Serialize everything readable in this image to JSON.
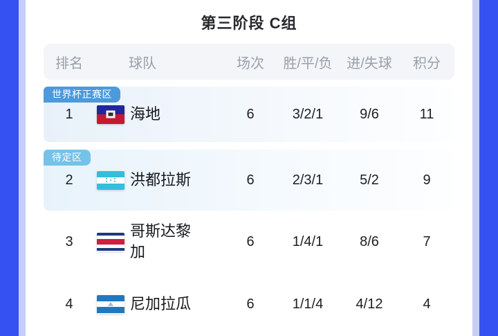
{
  "page": {
    "title": "第三阶段 C组"
  },
  "colors": {
    "frame_blue": "#3551F1",
    "frame_light_strip": "#C6CEF7",
    "header_bg": "#F3F5F8",
    "header_text": "#99A0AA",
    "highlight_row_blue": "#E8F1FA",
    "badge_world_cup_zone": "#4C99DB",
    "badge_pending_zone": "#74C2E8"
  },
  "table": {
    "headers": [
      "排名",
      "球队",
      "场次",
      "胜/平/负",
      "进/失球",
      "积分"
    ],
    "zones": {
      "world_cup": "世界杯正赛区",
      "pending": "待定区"
    },
    "rows": [
      {
        "rank": "1",
        "team": "海地",
        "flag": "haiti-flag",
        "matches": "6",
        "wdl": "3/2/1",
        "goals": "9/6",
        "points": "11",
        "zone": "世界杯正赛区"
      },
      {
        "rank": "2",
        "team": "洪都拉斯",
        "flag": "honduras-flag",
        "matches": "6",
        "wdl": "2/3/1",
        "goals": "5/2",
        "points": "9",
        "zone": "待定区"
      },
      {
        "rank": "3",
        "team": "哥斯达黎加",
        "flag": "costa-rica-flag",
        "matches": "6",
        "wdl": "1/4/1",
        "goals": "8/6",
        "points": "7"
      },
      {
        "rank": "4",
        "team": "尼加拉瓜",
        "flag": "nicaragua-flag",
        "matches": "6",
        "wdl": "1/1/4",
        "goals": "4/12",
        "points": "4"
      }
    ]
  }
}
